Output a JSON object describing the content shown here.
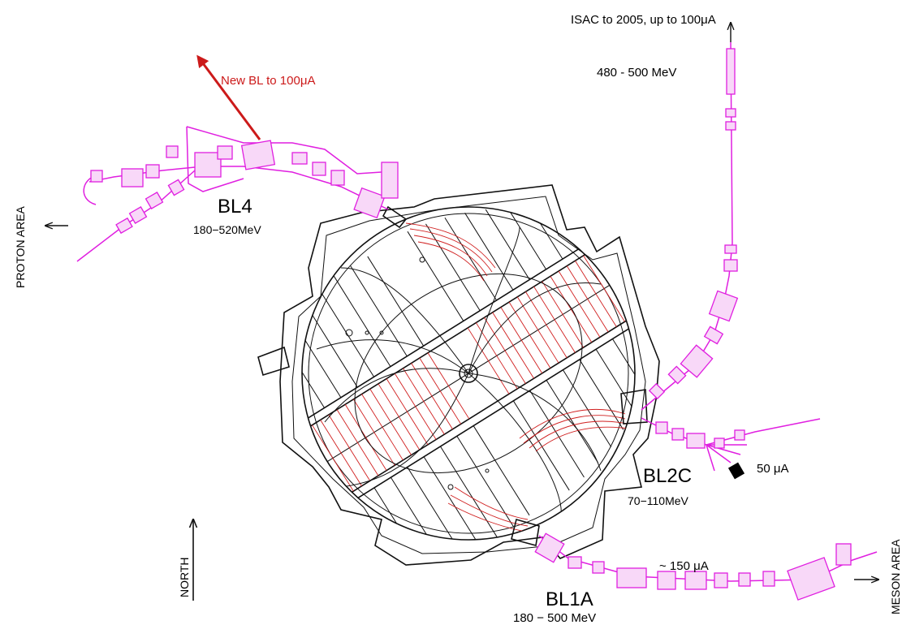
{
  "labels": {
    "isac": "ISAC to 2005, up to 100μA",
    "isac_energy": "480 - 500 MeV",
    "new_bl": "New BL to 100μA",
    "proton_area": "PROTON AREA",
    "bl4_name": "BL4",
    "bl4_energy": "180−520MeV",
    "bl2c_name": "BL2C",
    "bl2c_energy": "70−110MeV",
    "bl2c_current": "50  μA",
    "bl1a_name": "BL1A",
    "bl1a_energy": "180  −  500  MeV",
    "bl1a_current": "~  150  μA",
    "meson_area": "MESON AREA",
    "north": "NORTH"
  },
  "colors": {
    "beamline": "#e01fe0",
    "highlight": "#d01f1f",
    "structure": "#111111"
  }
}
